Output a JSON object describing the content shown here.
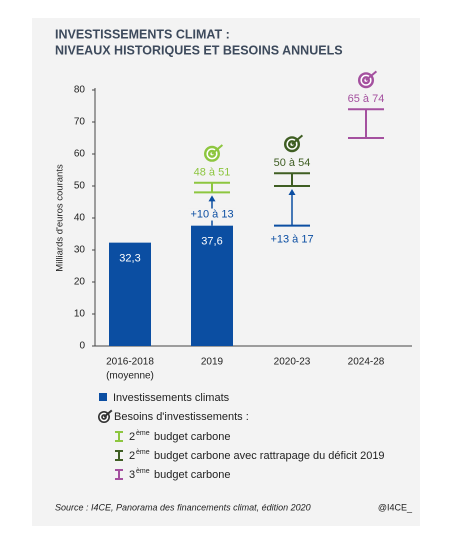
{
  "chart_data": {
    "type": "bar",
    "title": "INVESTISSEMENTS CLIMAT :",
    "subtitle": "NIVEAUX HISTORIQUES ET BESOINS ANNUELS",
    "y_label": "Milliards d'euros courants",
    "categories": [
      "2016-2018",
      "2019",
      "2020-23",
      "2024-28"
    ],
    "category_notes": [
      "(moyenne)",
      null,
      null,
      null
    ],
    "ylim": [
      0,
      80
    ],
    "yticks": [
      0,
      10,
      20,
      30,
      40,
      50,
      60,
      70,
      80
    ],
    "series": [
      {
        "name": "Investissements climats",
        "color": "#0b4ea2",
        "values": [
          32.3,
          37.6,
          null,
          null
        ],
        "value_labels": [
          "32,3",
          "37,6",
          null,
          null
        ]
      }
    ],
    "needs": {
      "name": "Besoins d'investissements :",
      "color": "#333333",
      "increment_color": "#0b4ea2",
      "increment_labels": [
        null,
        "+10 à 13",
        "+13 à 17",
        null
      ],
      "ranges": [
        {
          "name_number": "2",
          "name_suffix": "ème",
          "name_text": "budget carbone",
          "color": "#8dc63f",
          "low": [
            null,
            48,
            null,
            null
          ],
          "high": [
            null,
            51,
            null,
            null
          ],
          "labels": [
            null,
            "48 à 51",
            null,
            null
          ]
        },
        {
          "name_number": "2",
          "name_suffix": "ème",
          "name_text": "budget carbone avec rattrapage du déficit 2019",
          "color": "#3f5e23",
          "low": [
            null,
            null,
            50,
            null
          ],
          "high": [
            null,
            null,
            54,
            null
          ],
          "labels": [
            null,
            null,
            "50 à 54",
            null
          ]
        },
        {
          "name_number": "3",
          "name_suffix": "ème",
          "name_text": "budget carbone",
          "color": "#a4509f",
          "low": [
            null,
            null,
            null,
            65
          ],
          "high": [
            null,
            null,
            null,
            74
          ],
          "labels": [
            null,
            null,
            null,
            "65 à 74"
          ]
        }
      ]
    },
    "source": "Source : I4CE, Panorama des financements climat, édition 2020",
    "credit": "@I4CE_"
  }
}
